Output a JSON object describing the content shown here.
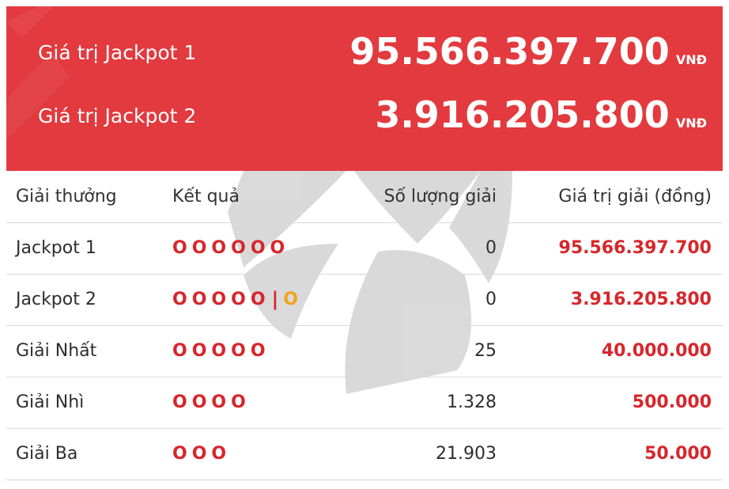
{
  "jackpots": [
    {
      "label": "Giá trị Jackpot 1",
      "value": "95.566.397.700",
      "currency": "VNĐ"
    },
    {
      "label": "Giá trị Jackpot 2",
      "value": "3.916.205.800",
      "currency": "VNĐ"
    }
  ],
  "table": {
    "headers": [
      "Giải thưởng",
      "Kết quả",
      "Số lượng giải",
      "Giá trị giải (đồng)"
    ],
    "rows": [
      {
        "prize": "Jackpot 1",
        "result": "O O O O O O",
        "count": "0",
        "value": "95.566.397.700"
      },
      {
        "prize": "Jackpot 2",
        "result": "O O O O O | O",
        "count": "0",
        "value": "3.916.205.800"
      },
      {
        "prize": "Giải Nhất",
        "result": "O O O O O",
        "count": "25",
        "value": "40.000.000"
      },
      {
        "prize": "Giải Nhì",
        "result": "O O O O",
        "count": "1.328",
        "value": "500.000"
      },
      {
        "prize": "Giải Ba",
        "result": "O O O",
        "count": "21.903",
        "value": "50.000"
      }
    ]
  },
  "colors": {
    "banner": "#e23a3e",
    "prize_red": "#d7262b",
    "bonus_gold": "#f2a21a"
  }
}
